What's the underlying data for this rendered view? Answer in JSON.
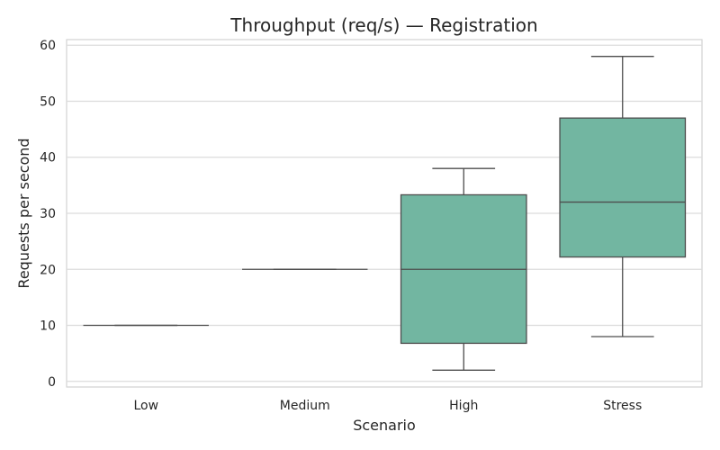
{
  "chart_data": {
    "type": "box",
    "title": "Throughput (req/s) — Registration",
    "xlabel": "Scenario",
    "ylabel": "Requests per second",
    "ylim": [
      -1,
      61
    ],
    "yticks": [
      0,
      10,
      20,
      30,
      40,
      50,
      60
    ],
    "grid": true,
    "box_color": "#72b6a1",
    "line_color": "#4d4d4d",
    "categories": [
      "Low",
      "Medium",
      "High",
      "Stress"
    ],
    "boxes": [
      {
        "category": "Low",
        "whisker_low": 10,
        "q1": 10,
        "median": 10,
        "q3": 10,
        "whisker_high": 10
      },
      {
        "category": "Medium",
        "whisker_low": 20,
        "q1": 20,
        "median": 20,
        "q3": 20,
        "whisker_high": 20
      },
      {
        "category": "High",
        "whisker_low": 2,
        "q1": 6.8,
        "median": 20,
        "q3": 33.3,
        "whisker_high": 38
      },
      {
        "category": "Stress",
        "whisker_low": 8,
        "q1": 22.2,
        "median": 32,
        "q3": 47,
        "whisker_high": 58
      }
    ]
  }
}
